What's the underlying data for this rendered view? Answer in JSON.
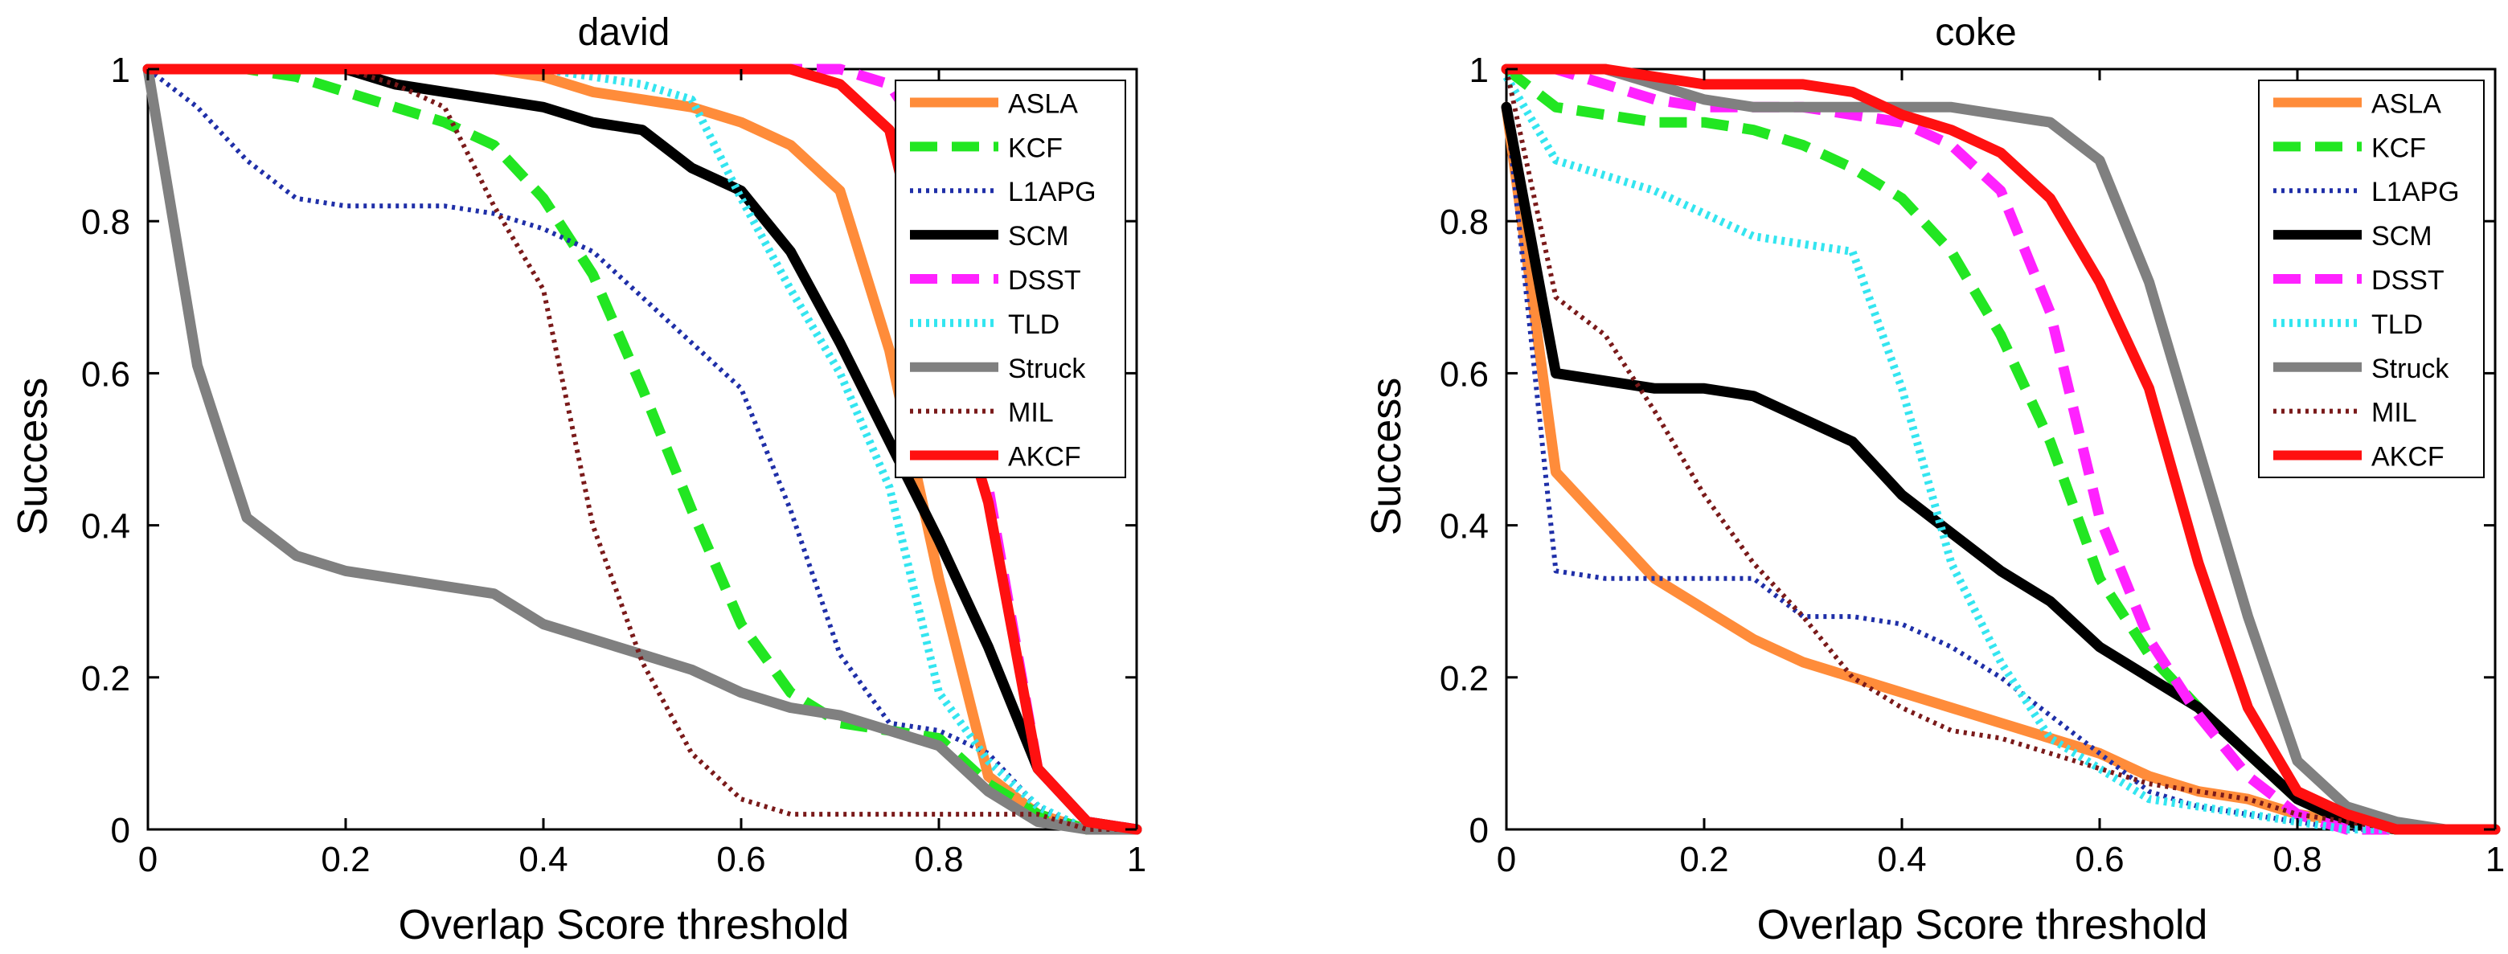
{
  "legend_entries": [
    "ASLA",
    "KCF",
    "L1APG",
    "SCM",
    "DSST",
    "TLD",
    "Struck",
    "MIL",
    "AKCF"
  ],
  "styles": {
    "ASLA": {
      "color": "#FF8C3A",
      "dash": "solid",
      "width": 13
    },
    "KCF": {
      "color": "#22E622",
      "dash": "dashed",
      "width": 13
    },
    "L1APG": {
      "color": "#1F2FA8",
      "dash": "dotted",
      "width": 6
    },
    "SCM": {
      "color": "#000000",
      "dash": "solid",
      "width": 13
    },
    "DSST": {
      "color": "#FF22FF",
      "dash": "dashed",
      "width": 13
    },
    "TLD": {
      "color": "#33E5F0",
      "dash": "dotted",
      "width": 10
    },
    "Struck": {
      "color": "#808080",
      "dash": "solid",
      "width": 13
    },
    "MIL": {
      "color": "#7A1A1A",
      "dash": "dotted",
      "width": 6
    },
    "AKCF": {
      "color": "#FF1010",
      "dash": "solid",
      "width": 13
    }
  },
  "chart_data": [
    {
      "type": "line",
      "title": "david",
      "xlabel": "Overlap Score threshold",
      "ylabel": "Success",
      "xlim": [
        0,
        1
      ],
      "ylim": [
        0,
        1
      ],
      "xticks": [
        0,
        0.2,
        0.4,
        0.6,
        0.8,
        1
      ],
      "yticks": [
        0,
        0.2,
        0.4,
        0.6,
        0.8,
        1
      ],
      "xtick_labels": [
        "0",
        "0.2",
        "0.4",
        "0.6",
        "0.8",
        "1"
      ],
      "ytick_labels": [
        "0",
        "0.2",
        "0.4",
        "0.6",
        "0.8",
        "1"
      ],
      "grid": false,
      "legend_position": "top-right",
      "x": [
        0,
        0.05,
        0.1,
        0.15,
        0.2,
        0.25,
        0.3,
        0.35,
        0.4,
        0.45,
        0.5,
        0.55,
        0.6,
        0.65,
        0.7,
        0.75,
        0.8,
        0.85,
        0.9,
        0.95,
        1
      ],
      "series": [
        {
          "name": "ASLA",
          "values": [
            1,
            1,
            1,
            1,
            1,
            1,
            1,
            1,
            0.99,
            0.97,
            0.96,
            0.95,
            0.93,
            0.9,
            0.84,
            0.63,
            0.33,
            0.07,
            0.02,
            0,
            0
          ]
        },
        {
          "name": "KCF",
          "values": [
            1,
            1,
            1,
            0.99,
            0.97,
            0.95,
            0.93,
            0.9,
            0.83,
            0.73,
            0.58,
            0.42,
            0.27,
            0.18,
            0.14,
            0.13,
            0.12,
            0.06,
            0.02,
            0,
            0
          ]
        },
        {
          "name": "L1APG",
          "values": [
            1,
            0.95,
            0.88,
            0.83,
            0.82,
            0.82,
            0.82,
            0.81,
            0.79,
            0.76,
            0.7,
            0.64,
            0.58,
            0.42,
            0.23,
            0.14,
            0.13,
            0.1,
            0.03,
            0,
            0
          ]
        },
        {
          "name": "SCM",
          "values": [
            1,
            1,
            1,
            1,
            1,
            0.98,
            0.97,
            0.96,
            0.95,
            0.93,
            0.92,
            0.87,
            0.84,
            0.76,
            0.64,
            0.51,
            0.38,
            0.24,
            0.08,
            0.01,
            0
          ]
        },
        {
          "name": "DSST",
          "values": [
            1,
            1,
            1,
            1,
            1,
            1,
            1,
            1,
            1,
            1,
            1,
            1,
            1,
            1,
            1,
            0.98,
            0.88,
            0.45,
            0.08,
            0.01,
            0
          ]
        },
        {
          "name": "TLD",
          "values": [
            1,
            1,
            1,
            1,
            1,
            1,
            1,
            1,
            1,
            0.99,
            0.98,
            0.96,
            0.83,
            0.71,
            0.6,
            0.45,
            0.18,
            0.09,
            0.03,
            0,
            0
          ]
        },
        {
          "name": "Struck",
          "values": [
            1,
            0.61,
            0.41,
            0.36,
            0.34,
            0.33,
            0.32,
            0.31,
            0.27,
            0.25,
            0.23,
            0.21,
            0.18,
            0.16,
            0.15,
            0.13,
            0.11,
            0.05,
            0.01,
            0,
            0
          ]
        },
        {
          "name": "MIL",
          "values": [
            1,
            1,
            1,
            1,
            1,
            0.98,
            0.95,
            0.82,
            0.71,
            0.4,
            0.22,
            0.1,
            0.04,
            0.02,
            0.02,
            0.02,
            0.02,
            0.02,
            0.02,
            0,
            0
          ]
        },
        {
          "name": "AKCF",
          "values": [
            1,
            1,
            1,
            1,
            1,
            1,
            1,
            1,
            1,
            1,
            1,
            1,
            1,
            1,
            0.98,
            0.92,
            0.65,
            0.43,
            0.08,
            0.01,
            0
          ]
        }
      ]
    },
    {
      "type": "line",
      "title": "coke",
      "xlabel": "Overlap Score threshold",
      "ylabel": "Success",
      "xlim": [
        0,
        1
      ],
      "ylim": [
        0,
        1
      ],
      "xticks": [
        0,
        0.2,
        0.4,
        0.6,
        0.8,
        1
      ],
      "yticks": [
        0,
        0.2,
        0.4,
        0.6,
        0.8,
        1
      ],
      "xtick_labels": [
        "0",
        "0.2",
        "0.4",
        "0.6",
        "0.8",
        "1"
      ],
      "ytick_labels": [
        "0",
        "0.2",
        "0.4",
        "0.6",
        "0.8",
        "1"
      ],
      "grid": false,
      "legend_position": "top-right",
      "x": [
        0,
        0.05,
        0.1,
        0.15,
        0.2,
        0.25,
        0.3,
        0.35,
        0.4,
        0.45,
        0.5,
        0.55,
        0.6,
        0.65,
        0.7,
        0.75,
        0.8,
        0.85,
        0.9,
        0.95,
        1
      ],
      "series": [
        {
          "name": "ASLA",
          "values": [
            0.95,
            0.47,
            0.4,
            0.33,
            0.29,
            0.25,
            0.22,
            0.2,
            0.18,
            0.16,
            0.14,
            0.12,
            0.1,
            0.07,
            0.05,
            0.04,
            0.02,
            0.01,
            0,
            0,
            0
          ]
        },
        {
          "name": "KCF",
          "values": [
            1,
            0.95,
            0.94,
            0.93,
            0.93,
            0.92,
            0.9,
            0.87,
            0.83,
            0.76,
            0.65,
            0.51,
            0.33,
            0.23,
            0.16,
            0.1,
            0.04,
            0.01,
            0,
            0,
            0
          ]
        },
        {
          "name": "L1APG",
          "values": [
            0.95,
            0.34,
            0.33,
            0.33,
            0.33,
            0.33,
            0.28,
            0.28,
            0.27,
            0.24,
            0.2,
            0.15,
            0.1,
            0.05,
            0.03,
            0.02,
            0.01,
            0,
            0,
            0,
            0
          ]
        },
        {
          "name": "SCM",
          "values": [
            0.95,
            0.6,
            0.59,
            0.58,
            0.58,
            0.57,
            0.54,
            0.51,
            0.44,
            0.39,
            0.34,
            0.3,
            0.24,
            0.2,
            0.16,
            0.1,
            0.04,
            0.01,
            0,
            0,
            0
          ]
        },
        {
          "name": "DSST",
          "values": [
            1,
            1,
            0.98,
            0.96,
            0.95,
            0.95,
            0.95,
            0.94,
            0.93,
            0.9,
            0.84,
            0.68,
            0.41,
            0.25,
            0.15,
            0.07,
            0.02,
            0,
            0,
            0,
            0
          ]
        },
        {
          "name": "TLD",
          "values": [
            0.99,
            0.88,
            0.86,
            0.84,
            0.81,
            0.78,
            0.77,
            0.76,
            0.58,
            0.35,
            0.22,
            0.12,
            0.08,
            0.04,
            0.03,
            0.02,
            0.01,
            0,
            0,
            0,
            0
          ]
        },
        {
          "name": "Struck",
          "values": [
            1,
            1,
            1,
            0.98,
            0.96,
            0.95,
            0.95,
            0.95,
            0.95,
            0.95,
            0.94,
            0.93,
            0.88,
            0.72,
            0.5,
            0.28,
            0.09,
            0.03,
            0.01,
            0,
            0
          ]
        },
        {
          "name": "MIL",
          "values": [
            1,
            0.7,
            0.65,
            0.55,
            0.44,
            0.35,
            0.28,
            0.2,
            0.16,
            0.13,
            0.12,
            0.1,
            0.08,
            0.06,
            0.05,
            0.04,
            0.02,
            0.01,
            0,
            0,
            0
          ]
        },
        {
          "name": "AKCF",
          "values": [
            1,
            1,
            1,
            0.99,
            0.98,
            0.98,
            0.98,
            0.97,
            0.94,
            0.92,
            0.89,
            0.83,
            0.72,
            0.58,
            0.35,
            0.16,
            0.05,
            0.02,
            0,
            0,
            0
          ]
        }
      ]
    }
  ]
}
